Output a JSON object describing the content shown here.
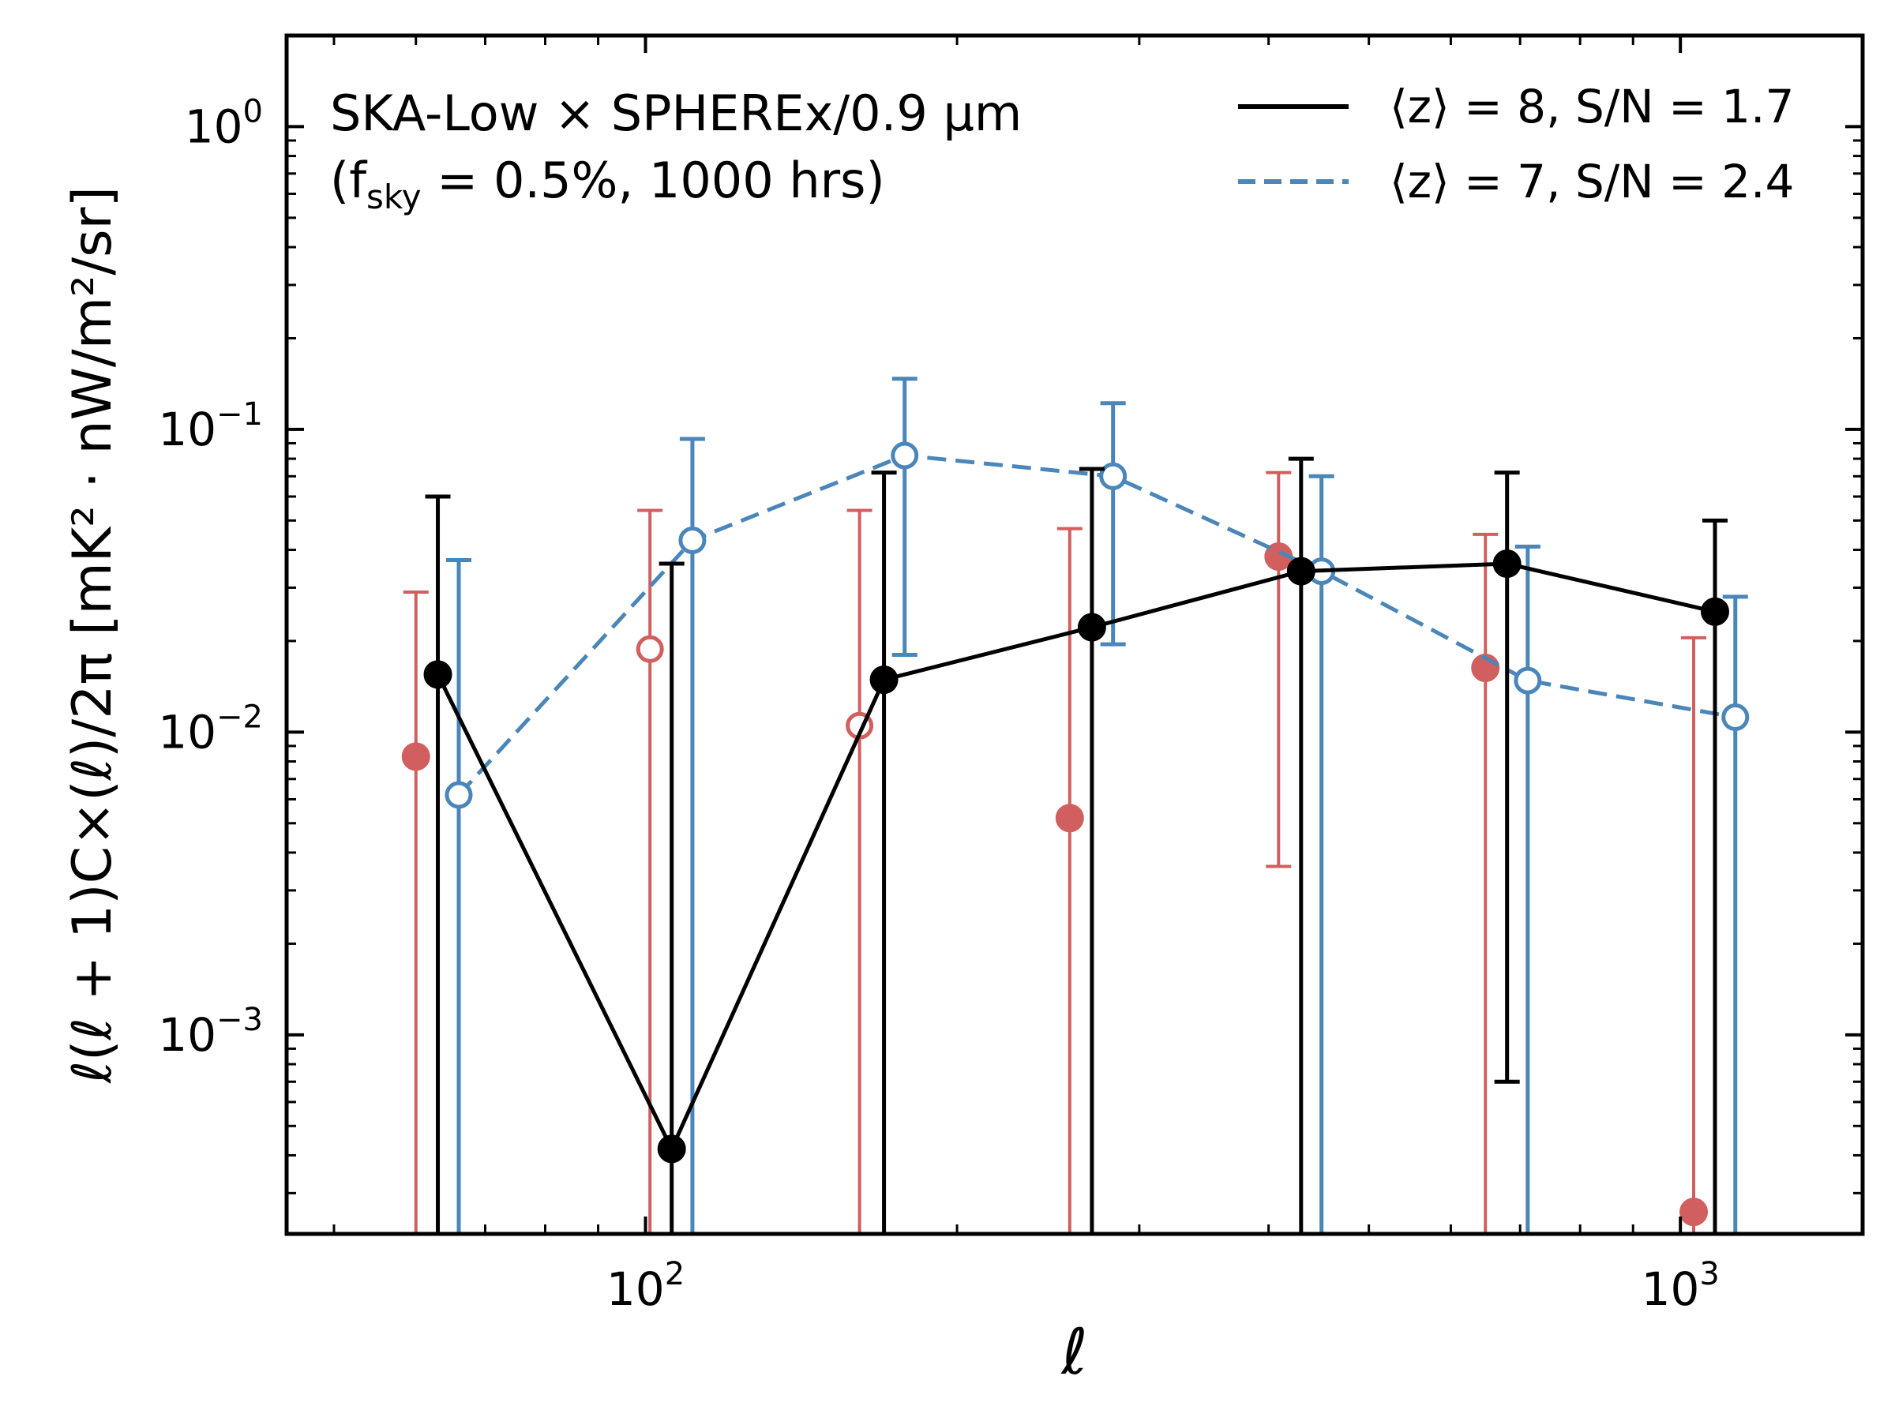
{
  "chart_data": {
    "type": "scatter",
    "x_scale": "log",
    "y_scale": "log",
    "xlim": [
      45,
      1500
    ],
    "ylim": [
      0.00022,
      2.0
    ],
    "xlabel": "ℓ",
    "ylabel": "ℓ(ℓ + 1)C×(ℓ)/2π [mK² · nW/m²/sr]",
    "x_tick_labels": [
      {
        "value": 100,
        "base": "10",
        "exp": "2"
      },
      {
        "value": 1000,
        "base": "10",
        "exp": "3"
      }
    ],
    "y_tick_labels": [
      {
        "value": 1,
        "base": "10",
        "exp": "0"
      },
      {
        "value": 0.1,
        "base": "10",
        "exp": "−1"
      },
      {
        "value": 0.01,
        "base": "10",
        "exp": "−2"
      },
      {
        "value": 0.001,
        "base": "10",
        "exp": "−3"
      }
    ],
    "annotation": {
      "line1": "SKA-Low × SPHEREx/0.9 μm",
      "line2_prefix": "(f",
      "line2_sub": "sky",
      "line2_rest": " = 0.5%, 1000 hrs)"
    },
    "legend_position": "top-right",
    "series": [
      {
        "name": "⟨z⟩ = 8, S/N = 1.7",
        "color": "#000000",
        "line": "solid",
        "marker": "filled",
        "points": [
          {
            "x": 63,
            "y": 0.0155,
            "yerr_low": 0.00022,
            "yerr_high": 0.06,
            "filled": true
          },
          {
            "x": 106,
            "y": 0.00042,
            "yerr_low": 0.00022,
            "yerr_high": 0.036,
            "filled": true
          },
          {
            "x": 170,
            "y": 0.0149,
            "yerr_low": 0.00022,
            "yerr_high": 0.072,
            "filled": true
          },
          {
            "x": 270,
            "y": 0.0222,
            "yerr_low": 0.00022,
            "yerr_high": 0.074,
            "filled": true
          },
          {
            "x": 430,
            "y": 0.034,
            "yerr_low": 0.00022,
            "yerr_high": 0.08,
            "filled": true
          },
          {
            "x": 680,
            "y": 0.036,
            "yerr_low": 0.0007,
            "yerr_high": 0.072,
            "filled": true
          },
          {
            "x": 1080,
            "y": 0.025,
            "yerr_low": 0.00022,
            "yerr_high": 0.05,
            "filled": true
          }
        ]
      },
      {
        "name": "⟨z⟩ = 7, S/N = 2.4",
        "color": "#4a86b9",
        "line": "dashed",
        "marker": "open",
        "points": [
          {
            "x": 66,
            "y": 0.0062,
            "yerr_low": 0.00022,
            "yerr_high": 0.037,
            "filled": false
          },
          {
            "x": 111,
            "y": 0.043,
            "yerr_low": 0.00022,
            "yerr_high": 0.093,
            "filled": false
          },
          {
            "x": 178,
            "y": 0.082,
            "yerr_low": 0.018,
            "yerr_high": 0.147,
            "filled": false
          },
          {
            "x": 283,
            "y": 0.07,
            "yerr_low": 0.0195,
            "yerr_high": 0.122,
            "filled": false
          },
          {
            "x": 450,
            "y": 0.034,
            "yerr_low": 0.00022,
            "yerr_high": 0.07,
            "filled": false
          },
          {
            "x": 712,
            "y": 0.0148,
            "yerr_low": 0.00022,
            "yerr_high": 0.041,
            "filled": false
          },
          {
            "x": 1130,
            "y": 0.0112,
            "yerr_low": 0.00022,
            "yerr_high": 0.028,
            "filled": false
          }
        ]
      },
      {
        "name": "red points",
        "color": "#d15f5f",
        "line": "none",
        "marker": "mixed",
        "points": [
          {
            "x": 60,
            "y": 0.0083,
            "yerr_low": 0.00022,
            "yerr_high": 0.029,
            "filled": true
          },
          {
            "x": 101,
            "y": 0.0188,
            "yerr_low": 0.00022,
            "yerr_high": 0.054,
            "filled": false
          },
          {
            "x": 161,
            "y": 0.0105,
            "yerr_low": 0.00022,
            "yerr_high": 0.054,
            "filled": false
          },
          {
            "x": 257,
            "y": 0.0052,
            "yerr_low": 0.00022,
            "yerr_high": 0.047,
            "filled": true
          },
          {
            "x": 409,
            "y": 0.038,
            "yerr_low": 0.0036,
            "yerr_high": 0.072,
            "filled": true
          },
          {
            "x": 648,
            "y": 0.0163,
            "yerr_low": 0.00022,
            "yerr_high": 0.045,
            "filled": true
          },
          {
            "x": 1030,
            "y": 0.00026,
            "yerr_low": 0.00022,
            "yerr_high": 0.0205,
            "filled": true
          }
        ]
      }
    ]
  }
}
